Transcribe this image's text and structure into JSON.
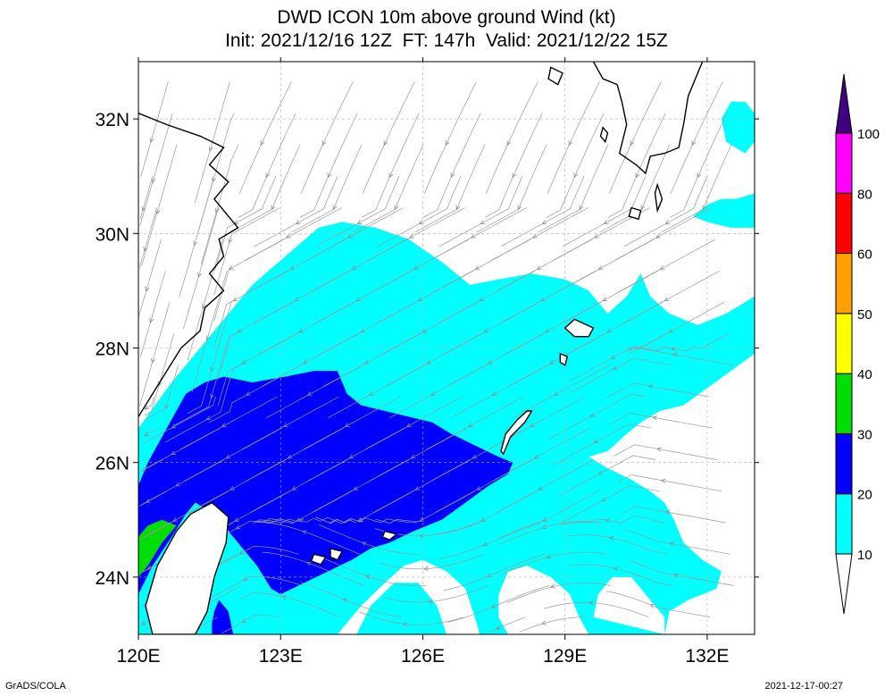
{
  "header": {
    "title": "DWD ICON 10m above ground Wind (kt)",
    "subtitle": "Init: 2021/12/16 12Z  FT: 147h  Valid: 2021/12/22 15Z"
  },
  "footer": {
    "left": "GrADS/COLA",
    "right": "2021-12-17-00:27"
  },
  "chart_data": {
    "type": "heatmap",
    "xlim": [
      120,
      133
    ],
    "ylim": [
      23,
      33
    ],
    "x_ticks": [
      {
        "value": 120,
        "label": "120E"
      },
      {
        "value": 123,
        "label": "123E"
      },
      {
        "value": 126,
        "label": "126E"
      },
      {
        "value": 129,
        "label": "129E"
      },
      {
        "value": 132,
        "label": "132E"
      }
    ],
    "y_ticks": [
      {
        "value": 24,
        "label": "24N"
      },
      {
        "value": 26,
        "label": "26N"
      },
      {
        "value": 28,
        "label": "28N"
      },
      {
        "value": 30,
        "label": "30N"
      },
      {
        "value": 32,
        "label": "32N"
      }
    ],
    "colorbar": {
      "levels": [
        {
          "value": 10,
          "label": "10",
          "color": "#ffffff"
        },
        {
          "value": 20,
          "label": "20",
          "color": "#00ffff"
        },
        {
          "value": 30,
          "label": "30",
          "color": "#0000ff"
        },
        {
          "value": 40,
          "label": "40",
          "color": "#00dd00"
        },
        {
          "value": 50,
          "label": "50",
          "color": "#ffff00"
        },
        {
          "value": 60,
          "label": "60",
          "color": "#ffa000"
        },
        {
          "value": 80,
          "label": "80",
          "color": "#ff0000"
        },
        {
          "value": 100,
          "label": "100",
          "color": "#ff00ff"
        }
      ],
      "top_color": "#400080"
    },
    "regions": [
      {
        "band": "10-20",
        "color": "#00ffff",
        "coords": [
          [
            120,
            23
          ],
          [
            120,
            26.6
          ],
          [
            120.7,
            27.4
          ],
          [
            121.7,
            28.4
          ],
          [
            122.4,
            29.1
          ],
          [
            123.1,
            29.6
          ],
          [
            123.8,
            30.1
          ],
          [
            124.3,
            30.2
          ],
          [
            125,
            30.1
          ],
          [
            125.7,
            29.9
          ],
          [
            126.4,
            29.5
          ],
          [
            127,
            29.1
          ],
          [
            127.6,
            29.2
          ],
          [
            128.3,
            29.3
          ],
          [
            129,
            29.2
          ],
          [
            129.5,
            29
          ],
          [
            129.9,
            28.6
          ],
          [
            130.3,
            28.9
          ],
          [
            130.6,
            29.3
          ],
          [
            130.8,
            28.9
          ],
          [
            131.2,
            28.6
          ],
          [
            131.8,
            28.4
          ],
          [
            132.4,
            28.6
          ],
          [
            133,
            28.9
          ],
          [
            133,
            27.9
          ],
          [
            132.5,
            27.6
          ],
          [
            132,
            27.3
          ],
          [
            131.5,
            27
          ],
          [
            131,
            26.9
          ],
          [
            130.6,
            26.7
          ],
          [
            130.3,
            26.5
          ],
          [
            129.9,
            26.2
          ],
          [
            129.5,
            26.1
          ],
          [
            129.9,
            25.9
          ],
          [
            130.4,
            25.7
          ],
          [
            130.8,
            25.5
          ],
          [
            131.1,
            25.3
          ],
          [
            131.3,
            25
          ],
          [
            131.5,
            24.6
          ],
          [
            131.9,
            24.3
          ],
          [
            132.3,
            24.1
          ],
          [
            132.2,
            23.8
          ],
          [
            131.6,
            23.6
          ],
          [
            131.2,
            23.4
          ],
          [
            131.1,
            23
          ],
          [
            120,
            23
          ]
        ]
      },
      {
        "band": "10-20",
        "color": "#00ffff",
        "coords": [
          [
            132.8,
            32.3
          ],
          [
            133,
            32.1
          ],
          [
            133,
            31.6
          ],
          [
            132.8,
            31.4
          ],
          [
            132.4,
            31.6
          ],
          [
            132.3,
            32
          ],
          [
            132.5,
            32.3
          ]
        ]
      },
      {
        "band": "10-20",
        "color": "#00ffff",
        "coords": [
          [
            132.6,
            30.6
          ],
          [
            133,
            30.7
          ],
          [
            133,
            30.1
          ],
          [
            132.5,
            30.1
          ],
          [
            132,
            30.2
          ],
          [
            131.7,
            30.3
          ],
          [
            132,
            30.5
          ],
          [
            132.3,
            30.6
          ]
        ]
      },
      {
        "band": "20-30",
        "color": "#0000ff",
        "coords": [
          [
            120,
            25.6
          ],
          [
            120,
            23.7
          ],
          [
            120.3,
            24.2
          ],
          [
            120.7,
            24.7
          ],
          [
            121,
            25.1
          ],
          [
            121.2,
            25.3
          ],
          [
            121.6,
            25.1
          ],
          [
            121.8,
            24.9
          ],
          [
            122,
            24.7
          ],
          [
            122.2,
            24.5
          ],
          [
            122.5,
            24.2
          ],
          [
            122.8,
            23.8
          ],
          [
            123,
            23.7
          ],
          [
            123.5,
            23.9
          ],
          [
            124,
            24.1
          ],
          [
            124.5,
            24.3
          ],
          [
            124.9,
            24.5
          ],
          [
            125.3,
            24.6
          ],
          [
            125.8,
            24.8
          ],
          [
            126.4,
            25
          ],
          [
            126.9,
            25.3
          ],
          [
            127.4,
            25.6
          ],
          [
            127.8,
            25.8
          ],
          [
            127.9,
            26
          ],
          [
            127.6,
            26.1
          ],
          [
            127.1,
            26.3
          ],
          [
            126.6,
            26.5
          ],
          [
            126.2,
            26.7
          ],
          [
            125.7,
            26.8
          ],
          [
            125.2,
            26.9
          ],
          [
            124.7,
            27
          ],
          [
            124.4,
            27.2
          ],
          [
            124.2,
            27.6
          ],
          [
            123.7,
            27.6
          ],
          [
            123.1,
            27.5
          ],
          [
            122.4,
            27.4
          ],
          [
            121.8,
            27.5
          ],
          [
            121.4,
            27.4
          ],
          [
            121,
            27.2
          ],
          [
            120.6,
            26.6
          ],
          [
            120.2,
            26
          ]
        ]
      },
      {
        "band": "20-30",
        "color": "#0000ff",
        "coords": [
          [
            121.55,
            23.2
          ],
          [
            121.55,
            23
          ],
          [
            122,
            23
          ],
          [
            121.9,
            23.4
          ],
          [
            121.7,
            23.6
          ],
          [
            121.6,
            23.4
          ]
        ]
      },
      {
        "band": "30-40",
        "color": "#00dd00",
        "coords": [
          [
            120,
            24.7
          ],
          [
            120,
            24
          ],
          [
            120.2,
            24.2
          ],
          [
            120.5,
            24.6
          ],
          [
            120.8,
            24.9
          ],
          [
            120.5,
            25
          ],
          [
            120.2,
            24.9
          ]
        ]
      },
      {
        "band": "<10",
        "color": "#ffffff",
        "coords": [
          [
            120.3,
            23
          ],
          [
            120.5,
            23.6
          ],
          [
            120.8,
            24.1
          ],
          [
            121.1,
            24.6
          ],
          [
            121.5,
            25
          ],
          [
            121.8,
            25.1
          ],
          [
            121.9,
            24.8
          ],
          [
            121.7,
            24.3
          ],
          [
            121.5,
            23.7
          ],
          [
            121.2,
            23
          ],
          [
            120.3,
            23
          ]
        ]
      },
      {
        "band": "<10",
        "color": "#ffffff",
        "coords": [
          [
            124.2,
            23
          ],
          [
            124.7,
            23.5
          ],
          [
            125.2,
            23.9
          ],
          [
            125.6,
            24.2
          ],
          [
            126,
            24.3
          ],
          [
            126.5,
            24.1
          ],
          [
            126.9,
            23.8
          ],
          [
            127.1,
            23.3
          ],
          [
            127.2,
            23
          ],
          [
            126.5,
            23
          ],
          [
            126.3,
            23.5
          ],
          [
            125.9,
            23.9
          ],
          [
            125.4,
            23.9
          ],
          [
            124.9,
            23.5
          ],
          [
            124.6,
            23
          ]
        ]
      },
      {
        "band": "<10",
        "color": "#ffffff",
        "coords": [
          [
            127.6,
            23.7
          ],
          [
            127.8,
            24.1
          ],
          [
            128.2,
            24.2
          ],
          [
            128.7,
            24
          ],
          [
            129.1,
            23.7
          ],
          [
            129.3,
            23.3
          ],
          [
            129.5,
            23
          ],
          [
            127.8,
            23
          ],
          [
            127.6,
            23.3
          ]
        ]
      },
      {
        "band": "<10",
        "color": "#ffffff",
        "coords": [
          [
            129.6,
            23.3
          ],
          [
            129.7,
            23.7
          ],
          [
            130,
            24
          ],
          [
            130.4,
            24
          ],
          [
            130.7,
            23.7
          ],
          [
            131.1,
            23.3
          ],
          [
            131.1,
            23
          ]
        ]
      }
    ],
    "coastlines": [
      {
        "name": "China coast",
        "coords": [
          [
            120,
            32.1
          ],
          [
            120.6,
            31.9
          ],
          [
            121.3,
            31.7
          ],
          [
            121.8,
            31.5
          ],
          [
            121.5,
            31.2
          ],
          [
            121.9,
            30.9
          ],
          [
            121.6,
            30.6
          ],
          [
            121.9,
            30.3
          ],
          [
            122.1,
            30.1
          ],
          [
            121.7,
            29.9
          ],
          [
            121.8,
            29.6
          ],
          [
            121.5,
            29.3
          ],
          [
            121.8,
            29
          ],
          [
            121.4,
            28.7
          ],
          [
            121.3,
            28.3
          ],
          [
            120.9,
            28
          ],
          [
            120.6,
            27.6
          ],
          [
            120.3,
            27.2
          ],
          [
            120,
            26.8
          ]
        ]
      },
      {
        "name": "Taiwan",
        "coords": [
          [
            121.55,
            25.3
          ],
          [
            121.9,
            25.05
          ],
          [
            121.85,
            24.6
          ],
          [
            121.6,
            24
          ],
          [
            121.45,
            23.4
          ],
          [
            121.2,
            23
          ],
          [
            120.3,
            23
          ],
          [
            120.15,
            23.5
          ],
          [
            120.4,
            24.2
          ],
          [
            120.8,
            24.8
          ],
          [
            121.1,
            25.1
          ]
        ]
      },
      {
        "name": "Amami-Oshima",
        "coords": [
          [
            129.2,
            28.5
          ],
          [
            129.6,
            28.35
          ],
          [
            129.5,
            28.2
          ],
          [
            129.2,
            28.2
          ],
          [
            129,
            28.35
          ]
        ]
      },
      {
        "name": "Tokunoshima",
        "coords": [
          [
            128.9,
            27.9
          ],
          [
            129.05,
            27.85
          ],
          [
            129.0,
            27.7
          ],
          [
            128.9,
            27.75
          ]
        ]
      },
      {
        "name": "Okinawa",
        "coords": [
          [
            128.3,
            26.9
          ],
          [
            128.15,
            26.7
          ],
          [
            127.85,
            26.45
          ],
          [
            127.7,
            26.15
          ],
          [
            127.65,
            26.2
          ],
          [
            127.75,
            26.5
          ],
          [
            128,
            26.75
          ],
          [
            128.2,
            26.9
          ]
        ]
      },
      {
        "name": "Miyako",
        "coords": [
          [
            125.2,
            24.8
          ],
          [
            125.45,
            24.75
          ],
          [
            125.3,
            24.65
          ],
          [
            125.15,
            24.7
          ]
        ]
      },
      {
        "name": "Ishigaki",
        "coords": [
          [
            124.05,
            24.5
          ],
          [
            124.3,
            24.45
          ],
          [
            124.2,
            24.3
          ],
          [
            124.05,
            24.35
          ]
        ]
      },
      {
        "name": "Iriomote",
        "coords": [
          [
            123.7,
            24.4
          ],
          [
            123.95,
            24.35
          ],
          [
            123.85,
            24.22
          ],
          [
            123.65,
            24.28
          ]
        ]
      },
      {
        "name": "Yakushima",
        "coords": [
          [
            130.4,
            30.45
          ],
          [
            130.6,
            30.4
          ],
          [
            130.55,
            30.25
          ],
          [
            130.35,
            30.3
          ]
        ]
      },
      {
        "name": "Tanegashima",
        "coords": [
          [
            130.95,
            30.85
          ],
          [
            131.05,
            30.6
          ],
          [
            130.95,
            30.4
          ],
          [
            130.9,
            30.7
          ]
        ]
      },
      {
        "name": "Kyushu",
        "coords": [
          [
            129.6,
            33
          ],
          [
            129.8,
            32.7
          ],
          [
            130.1,
            32.6
          ],
          [
            130.2,
            32.3
          ],
          [
            130.3,
            31.9
          ],
          [
            130.15,
            31.4
          ],
          [
            130.5,
            31.2
          ],
          [
            130.7,
            31.05
          ],
          [
            130.8,
            31.35
          ],
          [
            131.1,
            31.4
          ],
          [
            131.4,
            31.5
          ],
          [
            131.5,
            31.9
          ],
          [
            131.6,
            32.4
          ],
          [
            131.85,
            32.9
          ],
          [
            131.9,
            33
          ]
        ]
      },
      {
        "name": "Goto Islands",
        "coords": [
          [
            128.7,
            32.9
          ],
          [
            128.95,
            32.8
          ],
          [
            128.85,
            32.6
          ],
          [
            128.65,
            32.7
          ]
        ]
      },
      {
        "name": "Koshiki",
        "coords": [
          [
            129.8,
            31.85
          ],
          [
            129.9,
            31.75
          ],
          [
            129.85,
            31.6
          ],
          [
            129.75,
            31.7
          ]
        ]
      }
    ]
  }
}
